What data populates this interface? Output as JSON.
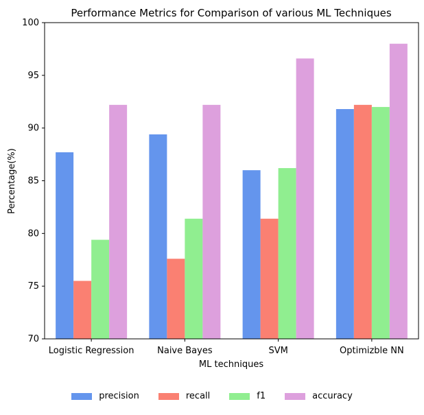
{
  "chart_data": {
    "type": "bar",
    "title": "Performance Metrics for Comparison of various ML Techniques",
    "xlabel": "ML techniques",
    "ylabel": "Percentage(%)",
    "ylim": [
      70,
      100
    ],
    "yticks": [
      70,
      75,
      80,
      85,
      90,
      95,
      100
    ],
    "categories": [
      "Logistic Regression",
      "Naive Bayes",
      "SVM",
      "Optimizble NN"
    ],
    "series": [
      {
        "name": "precision",
        "color": "#6495ED",
        "values": [
          87.7,
          89.4,
          86.0,
          91.8
        ]
      },
      {
        "name": "recall",
        "color": "#FA8072",
        "values": [
          75.5,
          77.6,
          81.4,
          92.2
        ]
      },
      {
        "name": "f1",
        "color": "#90EE90",
        "values": [
          79.4,
          81.4,
          86.2,
          92.0
        ]
      },
      {
        "name": "accuracy",
        "color": "#DDA0DD",
        "values": [
          92.2,
          92.2,
          96.6,
          98.0
        ]
      }
    ],
    "grid": false,
    "legend_position": "bottom-center"
  }
}
